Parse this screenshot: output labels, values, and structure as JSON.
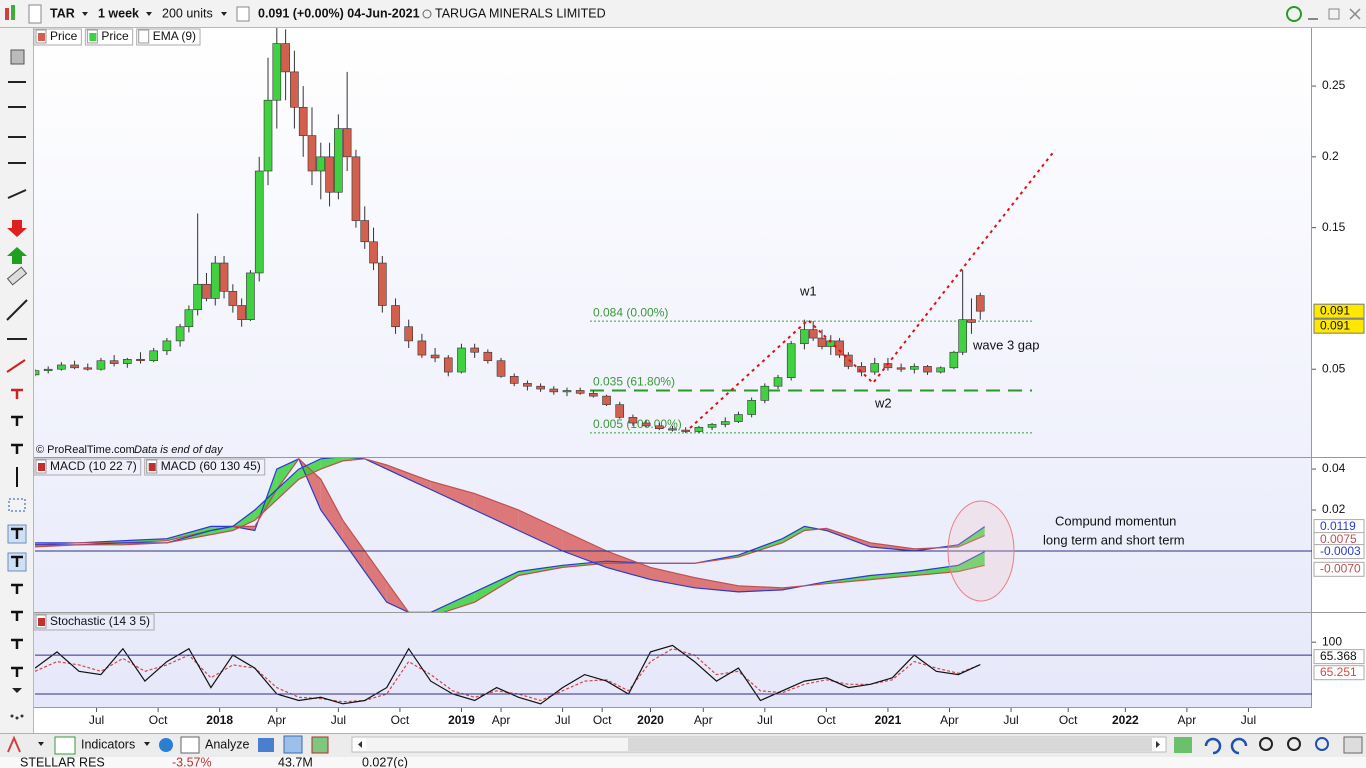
{
  "toolbar": {
    "symbol": "TAR",
    "period": "1 week",
    "units": "200 units",
    "quote": "0.091 (+0.00%) 04-Jun-2021",
    "name": "TARUGA MINERALS LIMITED"
  },
  "bottom_bar": {
    "indicators": "Indicators",
    "analyze": "Analyze",
    "ticker": {
      "name": "STELLAR RES",
      "change": "-3.57%",
      "volume": "43.7M",
      "price": "0.027(c)"
    }
  },
  "chart_data": [
    {
      "type": "candlestick",
      "legend": [
        "Price",
        "Price",
        "EMA (9)"
      ],
      "up_color": "#3fd13f",
      "down_color": "#d2604e",
      "ylim": [
        -0.012,
        0.291
      ],
      "yticks": [
        0.05,
        0.15,
        0.2,
        0.25
      ],
      "ema_last": 0.091,
      "credit": "© ProRealTime.com",
      "credit_note": "Data is end of day",
      "candles": [
        [
          0,
          0.046,
          0.05,
          0.045,
          0.049
        ],
        [
          3,
          0.049,
          0.052,
          0.047,
          0.05
        ],
        [
          6,
          0.05,
          0.055,
          0.049,
          0.053
        ],
        [
          9,
          0.053,
          0.056,
          0.05,
          0.051
        ],
        [
          12,
          0.051,
          0.054,
          0.049,
          0.05
        ],
        [
          15,
          0.05,
          0.058,
          0.049,
          0.056
        ],
        [
          18,
          0.056,
          0.06,
          0.052,
          0.054
        ],
        [
          21,
          0.054,
          0.058,
          0.051,
          0.057
        ],
        [
          24,
          0.057,
          0.062,
          0.054,
          0.056
        ],
        [
          27,
          0.056,
          0.065,
          0.055,
          0.063
        ],
        [
          30,
          0.063,
          0.072,
          0.06,
          0.07
        ],
        [
          33,
          0.07,
          0.082,
          0.066,
          0.08
        ],
        [
          35,
          0.08,
          0.095,
          0.076,
          0.092
        ],
        [
          37,
          0.092,
          0.16,
          0.088,
          0.11
        ],
        [
          39,
          0.11,
          0.118,
          0.098,
          0.1
        ],
        [
          41,
          0.1,
          0.13,
          0.095,
          0.125
        ],
        [
          43,
          0.125,
          0.13,
          0.1,
          0.105
        ],
        [
          45,
          0.105,
          0.11,
          0.09,
          0.095
        ],
        [
          47,
          0.095,
          0.1,
          0.08,
          0.085
        ],
        [
          49,
          0.085,
          0.12,
          0.084,
          0.118
        ],
        [
          51,
          0.118,
          0.2,
          0.112,
          0.19
        ],
        [
          53,
          0.19,
          0.27,
          0.18,
          0.24
        ],
        [
          55,
          0.24,
          0.295,
          0.22,
          0.28
        ],
        [
          57,
          0.28,
          0.29,
          0.24,
          0.26
        ],
        [
          59,
          0.26,
          0.275,
          0.22,
          0.235
        ],
        [
          61,
          0.235,
          0.25,
          0.2,
          0.215
        ],
        [
          63,
          0.215,
          0.235,
          0.18,
          0.19
        ],
        [
          65,
          0.19,
          0.21,
          0.17,
          0.2
        ],
        [
          67,
          0.2,
          0.21,
          0.165,
          0.175
        ],
        [
          69,
          0.175,
          0.23,
          0.17,
          0.22
        ],
        [
          71,
          0.22,
          0.26,
          0.19,
          0.2
        ],
        [
          73,
          0.2,
          0.205,
          0.15,
          0.155
        ],
        [
          75,
          0.155,
          0.165,
          0.135,
          0.14
        ],
        [
          77,
          0.14,
          0.15,
          0.12,
          0.125
        ],
        [
          79,
          0.125,
          0.13,
          0.09,
          0.095
        ],
        [
          82,
          0.095,
          0.1,
          0.075,
          0.08
        ],
        [
          85,
          0.08,
          0.085,
          0.065,
          0.07
        ],
        [
          88,
          0.07,
          0.075,
          0.058,
          0.06
        ],
        [
          91,
          0.06,
          0.065,
          0.055,
          0.058
        ],
        [
          94,
          0.058,
          0.06,
          0.045,
          0.048
        ],
        [
          97,
          0.048,
          0.068,
          0.047,
          0.065
        ],
        [
          100,
          0.065,
          0.068,
          0.058,
          0.062
        ],
        [
          103,
          0.062,
          0.064,
          0.054,
          0.056
        ],
        [
          106,
          0.056,
          0.058,
          0.044,
          0.045
        ],
        [
          109,
          0.045,
          0.047,
          0.038,
          0.04
        ],
        [
          112,
          0.04,
          0.042,
          0.035,
          0.038
        ],
        [
          115,
          0.038,
          0.04,
          0.034,
          0.036
        ],
        [
          118,
          0.036,
          0.038,
          0.032,
          0.034
        ],
        [
          121,
          0.034,
          0.037,
          0.031,
          0.035
        ],
        [
          124,
          0.035,
          0.037,
          0.032,
          0.033
        ],
        [
          127,
          0.033,
          0.035,
          0.03,
          0.031
        ],
        [
          130,
          0.031,
          0.032,
          0.024,
          0.025
        ],
        [
          133,
          0.025,
          0.027,
          0.015,
          0.016
        ],
        [
          136,
          0.016,
          0.018,
          0.01,
          0.012
        ],
        [
          139,
          0.012,
          0.014,
          0.009,
          0.01
        ],
        [
          142,
          0.01,
          0.012,
          0.007,
          0.008
        ],
        [
          145,
          0.008,
          0.01,
          0.006,
          0.007
        ],
        [
          148,
          0.007,
          0.009,
          0.005,
          0.006
        ],
        [
          151,
          0.006,
          0.01,
          0.005,
          0.009
        ],
        [
          154,
          0.009,
          0.012,
          0.007,
          0.011
        ],
        [
          157,
          0.011,
          0.016,
          0.009,
          0.013
        ],
        [
          160,
          0.013,
          0.02,
          0.012,
          0.018
        ],
        [
          163,
          0.018,
          0.03,
          0.016,
          0.028
        ],
        [
          166,
          0.028,
          0.04,
          0.026,
          0.038
        ],
        [
          169,
          0.038,
          0.046,
          0.036,
          0.044
        ],
        [
          172,
          0.044,
          0.07,
          0.042,
          0.068
        ],
        [
          175,
          0.068,
          0.085,
          0.064,
          0.078
        ],
        [
          177,
          0.078,
          0.084,
          0.07,
          0.072
        ],
        [
          179,
          0.072,
          0.078,
          0.064,
          0.066
        ],
        [
          181,
          0.066,
          0.074,
          0.06,
          0.07
        ],
        [
          183,
          0.07,
          0.072,
          0.058,
          0.06
        ],
        [
          185,
          0.06,
          0.062,
          0.05,
          0.052
        ],
        [
          188,
          0.052,
          0.055,
          0.045,
          0.048
        ],
        [
          191,
          0.048,
          0.058,
          0.046,
          0.054
        ],
        [
          194,
          0.054,
          0.058,
          0.049,
          0.051
        ],
        [
          197,
          0.051,
          0.054,
          0.048,
          0.05
        ],
        [
          200,
          0.05,
          0.054,
          0.047,
          0.052
        ],
        [
          203,
          0.052,
          0.053,
          0.046,
          0.048
        ],
        [
          206,
          0.048,
          0.052,
          0.047,
          0.051
        ],
        [
          209,
          0.051,
          0.063,
          0.05,
          0.062
        ],
        [
          211,
          0.062,
          0.12,
          0.06,
          0.085
        ],
        [
          213,
          0.085,
          0.1,
          0.075,
          0.083
        ],
        [
          215,
          0.102,
          0.104,
          0.085,
          0.091
        ]
      ],
      "fib_levels": [
        {
          "value": 0.084,
          "label": "0.084 (0.00%)",
          "line": "dotted"
        },
        {
          "value": 0.035,
          "label": "0.035 (61.80%)",
          "line": "dashed"
        },
        {
          "value": 0.005,
          "label": "0.005 (100.00%)",
          "line": "dotted"
        }
      ],
      "annotations": [
        "w1",
        "w2",
        "wave 3 gap"
      ]
    },
    {
      "type": "macd",
      "legend": [
        "MACD (10 22 7)",
        "MACD (60 130 45)"
      ],
      "ylim": [
        -0.0298,
        0.0454
      ],
      "yticks": [
        0.02,
        0.04
      ],
      "up_color": "#2fd12f",
      "down_color": "#d85a5a",
      "x": [
        0,
        10,
        20,
        30,
        40,
        45,
        50,
        55,
        60,
        65,
        70,
        75,
        80,
        85,
        90,
        100,
        110,
        120,
        130,
        140,
        150,
        160,
        170,
        175,
        180,
        190,
        200,
        210,
        216
      ],
      "series": [
        {
          "name": "MACD (10 22 7)",
          "color": "#2b3bd0",
          "last_label": "0.0119",
          "values": [
            0.004,
            0.004,
            0.005,
            0.006,
            0.012,
            0.012,
            0.01,
            0.04,
            0.045,
            0.02,
            0.005,
            -0.01,
            -0.025,
            -0.03,
            -0.03,
            -0.02,
            -0.01,
            -0.007,
            -0.005,
            -0.006,
            -0.006,
            -0.002,
            0.006,
            0.012,
            0.01,
            0.002,
            0,
            0.003,
            0.0119
          ]
        },
        {
          "name": "Signal (10 22 7)",
          "color": "#c0504d",
          "last_label": "0.0075",
          "values": [
            0.003,
            0.004,
            0.004,
            0.005,
            0.01,
            0.012,
            0.012,
            0.03,
            0.045,
            0.035,
            0.015,
            0,
            -0.015,
            -0.03,
            -0.032,
            -0.025,
            -0.012,
            -0.008,
            -0.006,
            -0.006,
            -0.006,
            -0.003,
            0.004,
            0.01,
            0.011,
            0.004,
            0.001,
            0.002,
            0.0075
          ]
        },
        {
          "name": "MACD (60 130 45)",
          "color": "#2b3bd0",
          "last_label": "-0.0003",
          "values": [
            0.003,
            0.003,
            0.004,
            0.004,
            0.01,
            0.012,
            0.02,
            0.03,
            0.04,
            0.045,
            0.046,
            0.045,
            0.04,
            0.035,
            0.03,
            0.02,
            0.01,
            0,
            -0.008,
            -0.014,
            -0.018,
            -0.02,
            -0.019,
            -0.017,
            -0.015,
            -0.012,
            -0.01,
            -0.007,
            -0.0003
          ]
        },
        {
          "name": "Signal (60 130 45)",
          "color": "#c0504d",
          "last_label": "-0.0070",
          "values": [
            0.002,
            0.003,
            0.003,
            0.004,
            0.008,
            0.01,
            0.015,
            0.025,
            0.035,
            0.04,
            0.044,
            0.045,
            0.042,
            0.038,
            0.034,
            0.028,
            0.02,
            0.01,
            0,
            -0.008,
            -0.013,
            -0.017,
            -0.018,
            -0.017,
            -0.016,
            -0.014,
            -0.012,
            -0.01,
            -0.007
          ]
        }
      ],
      "annotations": [
        "Compund momentun",
        "long term and short term"
      ]
    },
    {
      "type": "stochastic",
      "legend": [
        "Stochastic (14 3 5)"
      ],
      "ylim": [
        0,
        145
      ],
      "yticks": [
        100
      ],
      "levels": [
        20,
        80
      ],
      "xlim": [
        0,
        290
      ],
      "xticks": [
        {
          "value": 14,
          "label": "Jul"
        },
        {
          "value": 28,
          "label": "Oct"
        },
        {
          "value": 42,
          "label": "2018"
        },
        {
          "value": 55,
          "label": "Apr"
        },
        {
          "value": 69,
          "label": "Jul"
        },
        {
          "value": 83,
          "label": "Oct"
        },
        {
          "value": 97,
          "label": "2019"
        },
        {
          "value": 106,
          "label": "Apr"
        },
        {
          "value": 120,
          "label": "Jul"
        },
        {
          "value": 129,
          "label": "Oct"
        },
        {
          "value": 140,
          "label": "2020"
        },
        {
          "value": 152,
          "label": "Apr"
        },
        {
          "value": 166,
          "label": "Jul"
        },
        {
          "value": 180,
          "label": "Oct"
        },
        {
          "value": 194,
          "label": "2021"
        },
        {
          "value": 208,
          "label": "Apr"
        },
        {
          "value": 222,
          "label": "Jul"
        },
        {
          "value": 235,
          "label": "Oct"
        },
        {
          "value": 248,
          "label": "2022"
        },
        {
          "value": 262,
          "label": "Apr"
        },
        {
          "value": 276,
          "label": "Jul"
        }
      ],
      "x": [
        0,
        5,
        10,
        15,
        20,
        25,
        30,
        35,
        40,
        45,
        50,
        55,
        60,
        65,
        70,
        75,
        80,
        85,
        90,
        95,
        100,
        105,
        110,
        115,
        120,
        125,
        130,
        135,
        140,
        145,
        150,
        155,
        160,
        165,
        170,
        175,
        180,
        185,
        190,
        195,
        200,
        205,
        210,
        215
      ],
      "series": [
        {
          "name": "%K",
          "color": "#111111",
          "values": [
            60,
            85,
            55,
            50,
            90,
            40,
            70,
            90,
            30,
            80,
            60,
            20,
            10,
            15,
            5,
            10,
            30,
            90,
            40,
            20,
            10,
            30,
            15,
            5,
            30,
            50,
            40,
            20,
            85,
            95,
            70,
            40,
            60,
            10,
            25,
            40,
            45,
            30,
            35,
            45,
            80,
            55,
            50,
            65.368
          ]
        },
        {
          "name": "%D",
          "color": "#d04848",
          "values": [
            55,
            70,
            65,
            55,
            75,
            55,
            65,
            80,
            45,
            65,
            60,
            30,
            15,
            13,
            8,
            10,
            20,
            70,
            50,
            25,
            15,
            25,
            20,
            10,
            25,
            40,
            42,
            25,
            70,
            90,
            80,
            50,
            55,
            25,
            22,
            35,
            42,
            35,
            35,
            42,
            70,
            60,
            52,
            65.251
          ]
        }
      ]
    }
  ]
}
